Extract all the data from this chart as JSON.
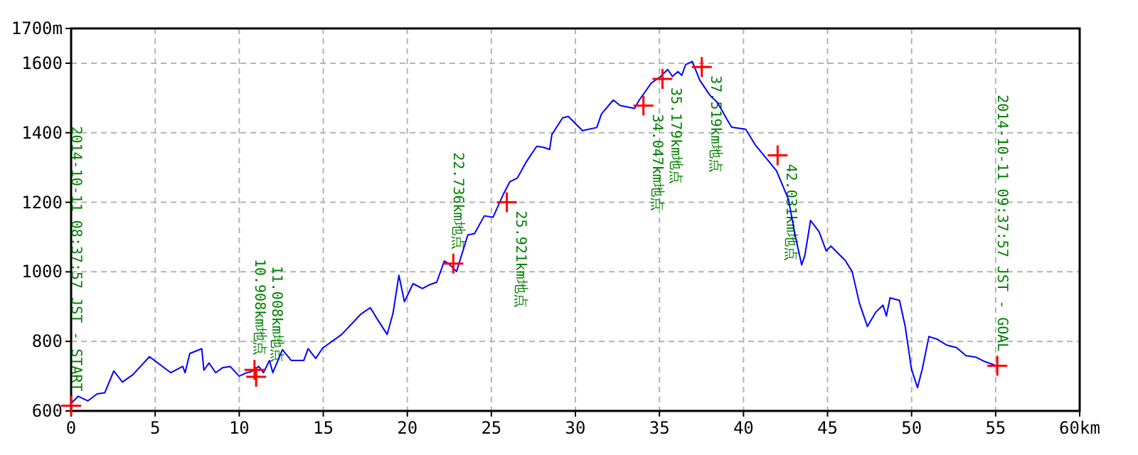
{
  "chart_data": {
    "type": "line",
    "xlim": [
      0,
      60
    ],
    "ylim": [
      600,
      1700
    ],
    "xticks": [
      0,
      5,
      10,
      15,
      20,
      25,
      30,
      35,
      40,
      45,
      50,
      55,
      {
        "value": 60,
        "label": "60km"
      }
    ],
    "yticks": [
      600,
      800,
      1000,
      1200,
      1400,
      1600,
      {
        "value": 1700,
        "label": "1700m"
      }
    ],
    "grid": true,
    "series": [
      {
        "color": "#0000ff",
        "x": [
          0,
          0.42,
          1.0,
          1.55,
          2.0,
          2.54,
          3.05,
          3.67,
          4.66,
          5.93,
          6.64,
          6.78,
          7.06,
          7.77,
          7.9,
          8.2,
          8.6,
          9.0,
          9.46,
          10.0,
          10.45,
          10.73,
          11.16,
          11.44,
          11.8,
          12.0,
          12.57,
          13.1,
          13.84,
          14.1,
          14.55,
          14.97,
          16.1,
          17.23,
          17.8,
          18.2,
          18.8,
          19.15,
          19.5,
          19.83,
          20.34,
          20.9,
          21.33,
          21.75,
          22.2,
          22.45,
          22.93,
          23.6,
          24.0,
          24.58,
          25.1,
          25.7,
          26.1,
          26.55,
          27.1,
          27.7,
          28.1,
          28.47,
          28.6,
          29.24,
          29.58,
          30.42,
          31.27,
          31.55,
          32.25,
          32.67,
          33.52,
          33.8,
          34.5,
          35.07,
          35.49,
          35.77,
          36.1,
          36.33,
          36.56,
          36.95,
          37.4,
          38.0,
          38.45,
          39.0,
          39.3,
          40.13,
          40.7,
          41.26,
          41.96,
          42.67,
          43.09,
          43.46,
          43.65,
          43.99,
          44.5,
          44.92,
          45.2,
          46.05,
          46.47,
          46.89,
          47.37,
          47.87,
          48.3,
          48.5,
          48.72,
          49.28,
          49.62,
          49.99,
          50.35,
          50.64,
          51.03,
          51.54,
          52.1,
          52.68,
          53.23,
          53.8,
          54.35,
          55.0
        ],
        "values": [
          622,
          642,
          629,
          649,
          652,
          715,
          683,
          704,
          756,
          710,
          728,
          710,
          765,
          779,
          717,
          738,
          710,
          724,
          728,
          700,
          710,
          713,
          728,
          710,
          745,
          710,
          776,
          745,
          745,
          779,
          751,
          781,
          820,
          878,
          897,
          865,
          820,
          881,
          990,
          914,
          966,
          952,
          963,
          970,
          1031,
          1024,
          1001,
          1106,
          1110,
          1161,
          1157,
          1222,
          1259,
          1270,
          1318,
          1361,
          1358,
          1352,
          1395,
          1443,
          1447,
          1406,
          1415,
          1454,
          1494,
          1478,
          1470,
          1494,
          1542,
          1562,
          1582,
          1562,
          1576,
          1565,
          1596,
          1605,
          1551,
          1508,
          1487,
          1440,
          1416,
          1410,
          1365,
          1332,
          1291,
          1209,
          1101,
          1020,
          1047,
          1148,
          1115,
          1060,
          1074,
          1033,
          1000,
          911,
          843,
          884,
          904,
          873,
          925,
          918,
          843,
          721,
          667,
          721,
          814,
          806,
          789,
          782,
          759,
          755,
          742,
          731
        ]
      },
      {
        "type": "scatter",
        "color": "#ff0000",
        "marker": "cross",
        "x": [
          0,
          10.908,
          11.008,
          22.736,
          25.921,
          34.047,
          35.179,
          37.519,
          42.031,
          55.1
        ],
        "values": [
          615,
          718,
          698,
          1024,
          1200,
          1478,
          1555,
          1589,
          1335,
          730
        ]
      }
    ],
    "annotations": [
      {
        "text": "2014-10-11 08:37:57 JST - START",
        "x": 0,
        "y": 615
      },
      {
        "text": "10.908km地点",
        "x": 10.908,
        "y": 718
      },
      {
        "text": "11.008km地点",
        "x": 11.008,
        "y": 698
      },
      {
        "text": "22.736km地点",
        "x": 22.736,
        "y": 1024
      },
      {
        "text": "25.921km地点",
        "x": 25.921,
        "y": 1200
      },
      {
        "text": "34.047km地点",
        "x": 34.047,
        "y": 1478
      },
      {
        "text": "35.179km地点",
        "x": 35.179,
        "y": 1555
      },
      {
        "text": "37.519km地点",
        "x": 37.519,
        "y": 1589
      },
      {
        "text": "42.031km地点",
        "x": 42.031,
        "y": 1335
      },
      {
        "text": "2014-10-11 09:37:57 JST - GOAL",
        "x": 55.1,
        "y": 730
      }
    ]
  }
}
